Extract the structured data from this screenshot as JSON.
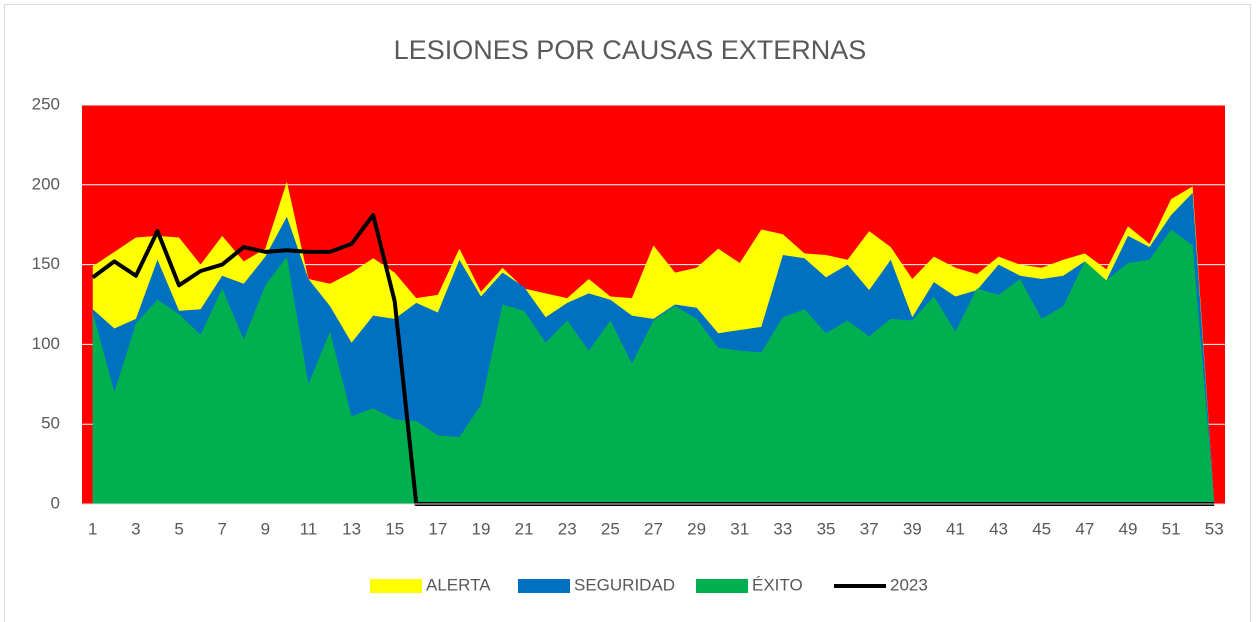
{
  "chart_data": {
    "type": "area",
    "title": "LESIONES POR CAUSAS EXTERNAS",
    "categories": [
      1,
      null,
      3,
      null,
      5,
      null,
      7,
      null,
      9,
      null,
      11,
      null,
      13,
      null,
      15,
      null,
      17,
      null,
      19,
      null,
      21,
      null,
      23,
      null,
      25,
      null,
      27,
      null,
      29,
      null,
      31,
      null,
      33,
      null,
      35,
      null,
      37,
      null,
      39,
      null,
      41,
      null,
      43,
      null,
      45,
      null,
      47,
      null,
      49,
      null,
      51,
      null,
      53
    ],
    "ylim": [
      0,
      250
    ],
    "yticks": [
      0,
      50,
      100,
      150,
      200,
      250
    ],
    "grid": true,
    "grid_color": "#ffffff",
    "plot_background": "#ff0000",
    "legend": "bottom",
    "series": [
      {
        "name": "ALERTA",
        "color": "#ffff00",
        "kind": "area",
        "values": [
          149,
          158,
          167,
          168,
          167,
          150,
          168,
          152,
          160,
          202,
          141,
          138,
          145,
          154,
          145,
          129,
          131,
          160,
          133,
          148,
          135,
          132,
          129,
          141,
          130,
          129,
          162,
          145,
          148,
          160,
          151,
          172,
          169,
          157,
          156,
          153,
          171,
          161,
          141,
          155,
          148,
          144,
          155,
          150,
          148,
          153,
          157,
          147,
          174,
          163,
          191,
          199,
          0
        ]
      },
      {
        "name": "SEGURIDAD",
        "color": "#0070c0",
        "kind": "area",
        "values": [
          122,
          110,
          116,
          153,
          121,
          122,
          143,
          138,
          155,
          180,
          141,
          124,
          101,
          118,
          116,
          126,
          120,
          153,
          130,
          145,
          136,
          117,
          126,
          132,
          128,
          118,
          116,
          125,
          123,
          107,
          109,
          111,
          156,
          154,
          142,
          150,
          134,
          153,
          117,
          139,
          130,
          134,
          150,
          143,
          141,
          143,
          152,
          140,
          168,
          161,
          181,
          195,
          0
        ]
      },
      {
        "name": "ÉXITO",
        "color": "#00b050",
        "kind": "area",
        "values": [
          120,
          70,
          113,
          128,
          119,
          106,
          135,
          103,
          137,
          155,
          75,
          108,
          55,
          60,
          53,
          52,
          43,
          42,
          62,
          125,
          121,
          101,
          115,
          96,
          115,
          88,
          115,
          124,
          116,
          98,
          96,
          95,
          117,
          122,
          107,
          115,
          105,
          116,
          115,
          130,
          108,
          135,
          131,
          141,
          116,
          124,
          152,
          140,
          151,
          153,
          172,
          162,
          0
        ]
      },
      {
        "name": "2023",
        "color": "#000000",
        "kind": "line",
        "values": [
          142,
          152,
          143,
          171,
          137,
          146,
          150,
          161,
          158,
          159,
          158,
          158,
          163,
          181,
          127,
          0,
          0,
          0,
          0,
          0,
          0,
          0,
          0,
          0,
          0,
          0,
          0,
          0,
          0,
          0,
          0,
          0,
          0,
          0,
          0,
          0,
          0,
          0,
          0,
          0,
          0,
          0,
          0,
          0,
          0,
          0,
          0,
          0,
          0,
          0,
          0,
          0,
          0
        ]
      }
    ]
  }
}
